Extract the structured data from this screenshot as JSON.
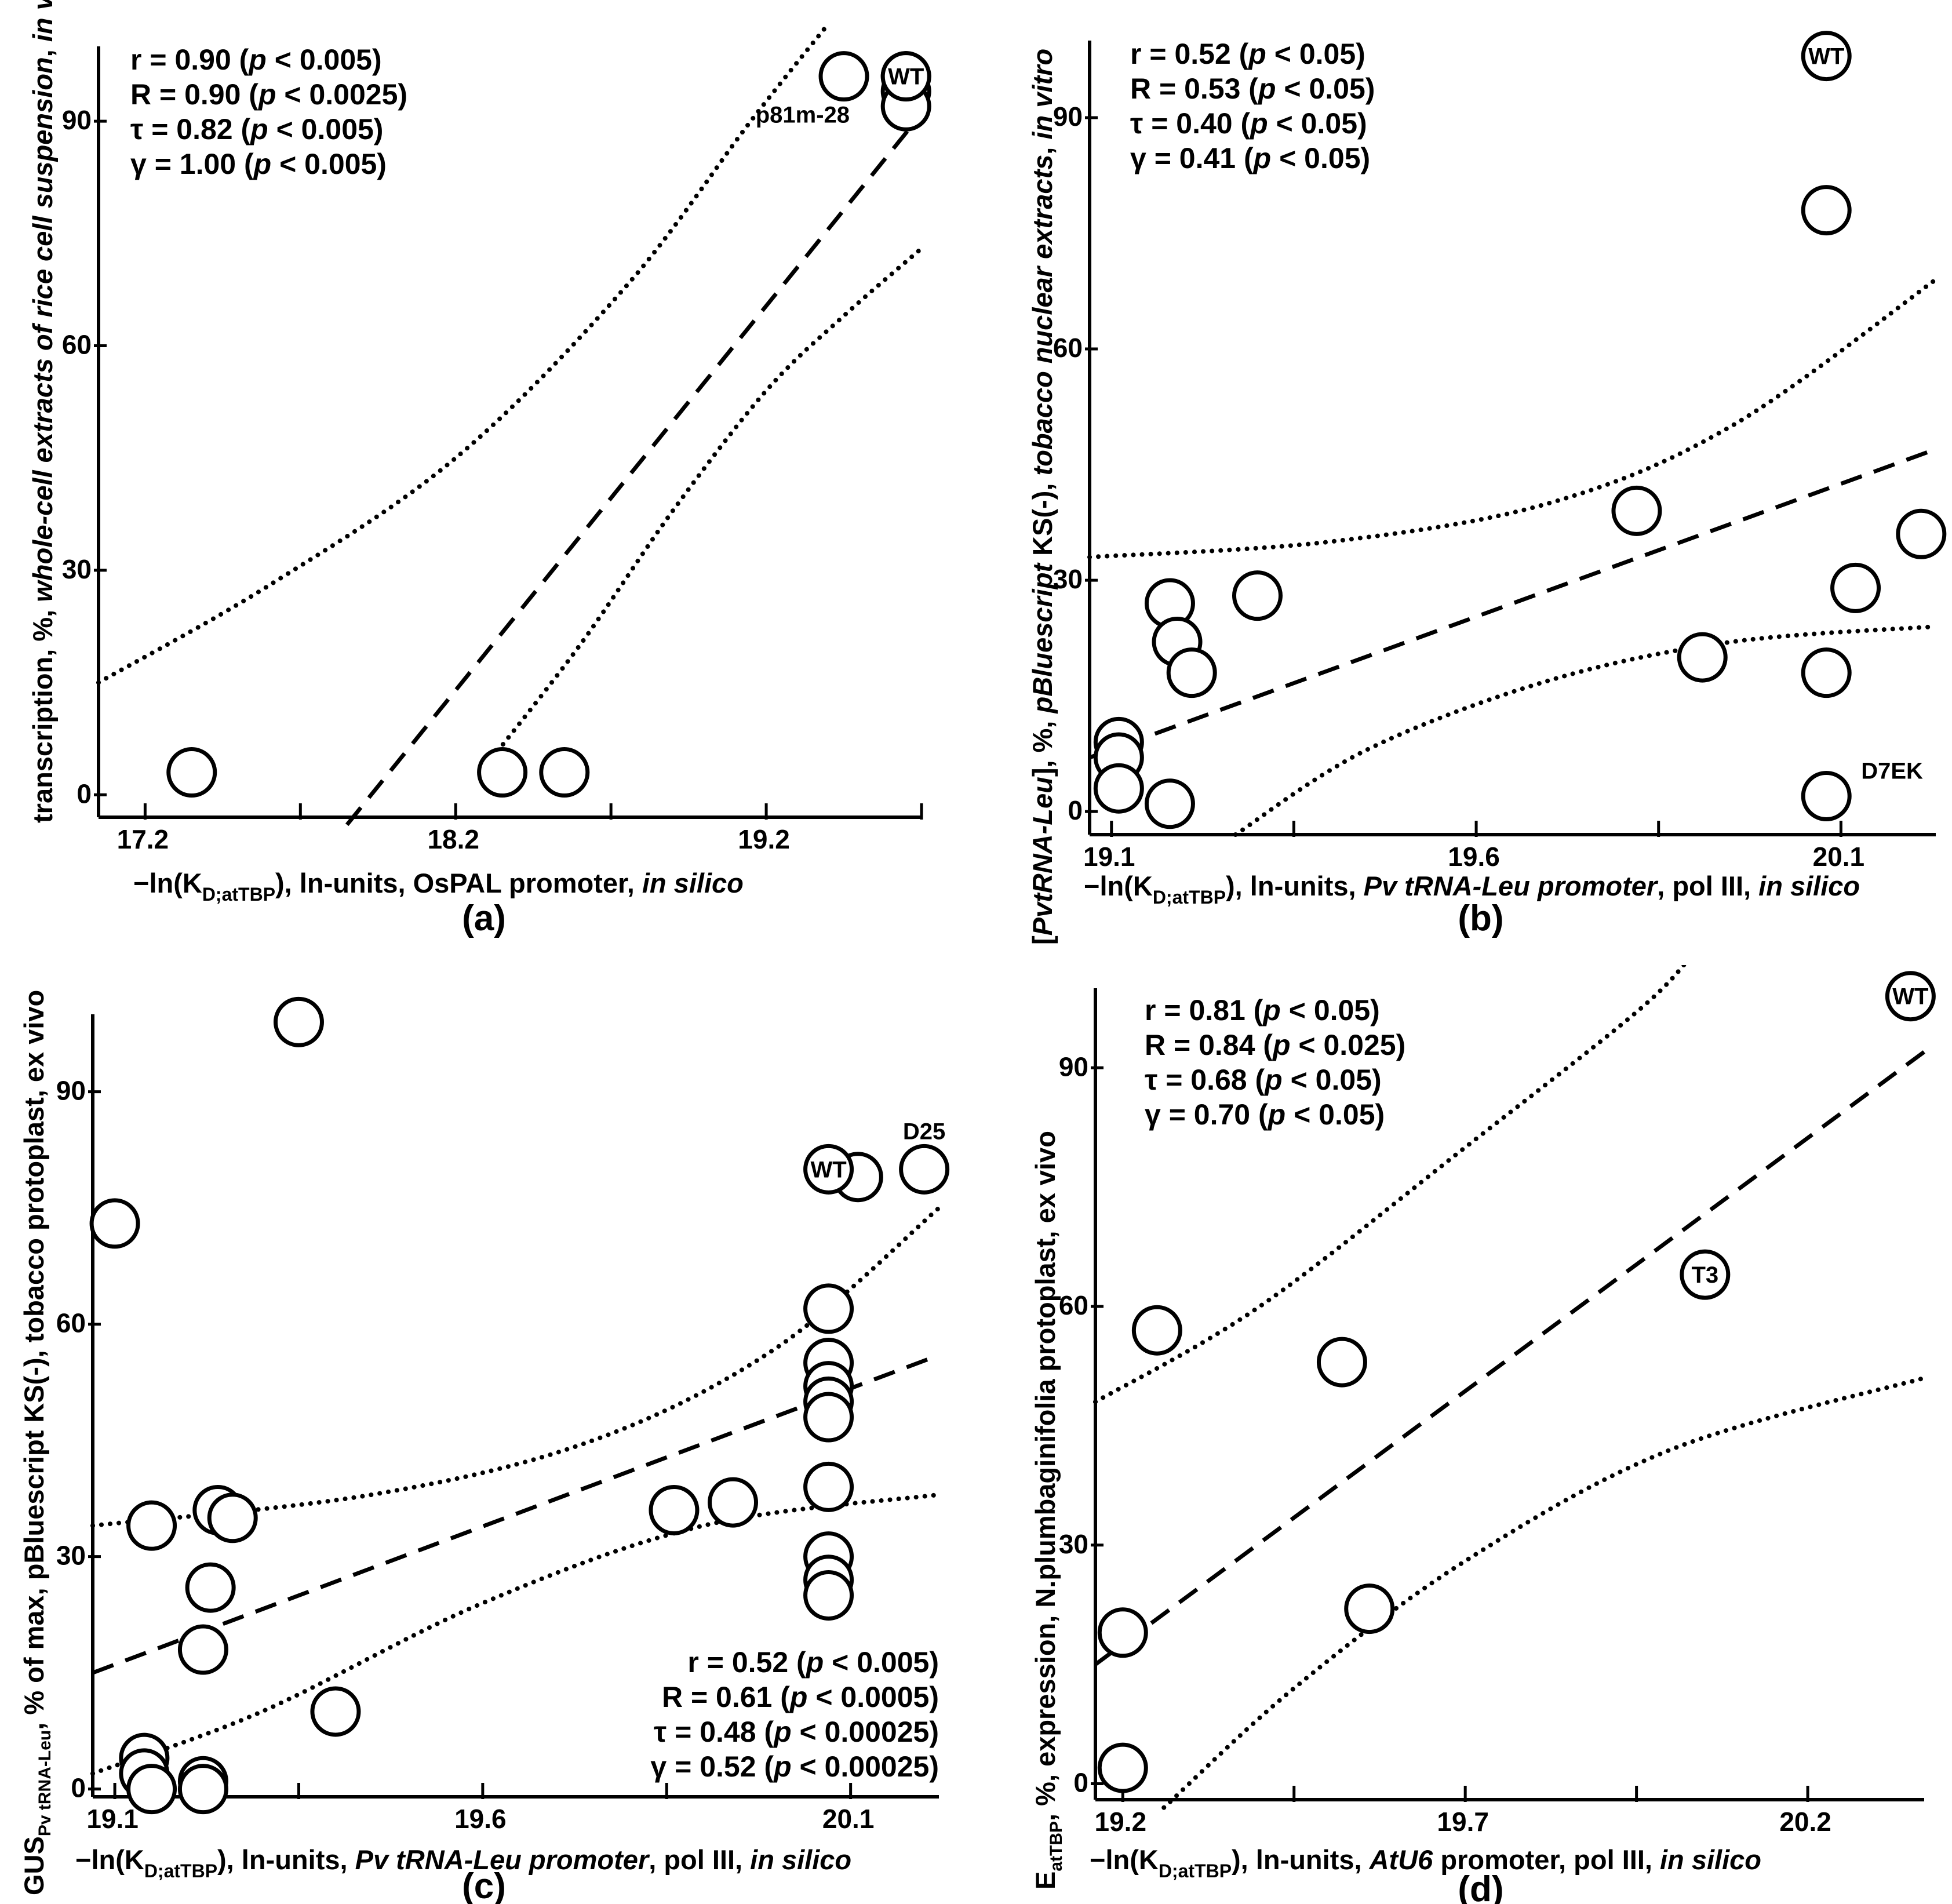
{
  "chart_data": [
    {
      "type": "scatter",
      "panel": "(a)",
      "xlabel": "−ln(K D;atTBP), ln-units, OsPAL promoter, in silico",
      "ylabel": "transcription, %, whole-cell extracts of rice cell suspension, in vitro",
      "xlim": [
        17.05,
        19.7
      ],
      "ylim": [
        -3,
        100
      ],
      "xticks": [
        17.2,
        18.2,
        19.2
      ],
      "yticks": [
        0,
        30,
        60,
        90
      ],
      "stats": [
        {
          "sym": "r",
          "value": "= 0.90",
          "p": "< 0.005"
        },
        {
          "sym": "R",
          "value": "= 0.90",
          "p": "< 0.0025"
        },
        {
          "sym": "τ",
          "value": "= 0.82",
          "p": "< 0.005"
        },
        {
          "sym": "γ",
          "value": "= 1.00",
          "p": "< 0.005"
        }
      ],
      "points": [
        {
          "x": 17.35,
          "y": 3,
          "label": ""
        },
        {
          "x": 18.35,
          "y": 3,
          "label": ""
        },
        {
          "x": 18.55,
          "y": 3,
          "label": ""
        },
        {
          "x": 19.45,
          "y": 96,
          "label": "p81m-28"
        },
        {
          "x": 19.65,
          "y": 96,
          "label": ""
        },
        {
          "x": 19.65,
          "y": 94,
          "label": ""
        },
        {
          "x": 19.65,
          "y": 92,
          "label": ""
        },
        {
          "x": 19.65,
          "y": 96,
          "label": "WT"
        }
      ],
      "regression": [
        [
          17.85,
          -4
        ],
        [
          19.7,
          91
        ]
      ],
      "upper_ci": [
        [
          17.05,
          15
        ],
        [
          17.6,
          28
        ],
        [
          18.2,
          45
        ],
        [
          18.75,
          68
        ],
        [
          19.15,
          90
        ],
        [
          19.4,
          103
        ]
      ],
      "lower_ci": [
        [
          18.3,
          4
        ],
        [
          18.6,
          20
        ],
        [
          18.9,
          38
        ],
        [
          19.2,
          54
        ],
        [
          19.45,
          64
        ],
        [
          19.7,
          73
        ]
      ]
    },
    {
      "type": "scatter",
      "panel": "(b)",
      "xlabel": "−ln(K D;atTBP), ln-units, Pv tRNA-Leu promoter, pol III, in silico",
      "ylabel": "[PvtRNA-Leu], %, pBluescript KS(-), tobacco nuclear extracts, in vitro",
      "xlim": [
        19.07,
        20.23
      ],
      "ylim": [
        -3,
        100
      ],
      "xticks": [
        19.1,
        19.6,
        20.1
      ],
      "yticks": [
        0,
        30,
        60,
        90
      ],
      "stats": [
        {
          "sym": "r",
          "value": "= 0.52",
          "p": "< 0.05"
        },
        {
          "sym": "R",
          "value": "= 0.53",
          "p": "< 0.05"
        },
        {
          "sym": "τ",
          "value": "= 0.40",
          "p": "< 0.05"
        },
        {
          "sym": "γ",
          "value": "= 0.41",
          "p": "< 0.05"
        }
      ],
      "points": [
        {
          "x": 19.11,
          "y": 9,
          "label": ""
        },
        {
          "x": 19.11,
          "y": 7,
          "label": ""
        },
        {
          "x": 19.11,
          "y": 3,
          "label": ""
        },
        {
          "x": 19.18,
          "y": 27,
          "label": ""
        },
        {
          "x": 19.19,
          "y": 22,
          "label": ""
        },
        {
          "x": 19.21,
          "y": 18,
          "label": ""
        },
        {
          "x": 19.18,
          "y": 1,
          "label": ""
        },
        {
          "x": 19.3,
          "y": 28,
          "label": ""
        },
        {
          "x": 19.82,
          "y": 39,
          "label": ""
        },
        {
          "x": 19.91,
          "y": 20,
          "label": ""
        },
        {
          "x": 20.08,
          "y": 78,
          "label": ""
        },
        {
          "x": 20.08,
          "y": 18,
          "label": ""
        },
        {
          "x": 20.12,
          "y": 29,
          "label": ""
        },
        {
          "x": 20.21,
          "y": 36,
          "label": ""
        },
        {
          "x": 20.08,
          "y": 2,
          "label": "D7EK"
        },
        {
          "x": 20.08,
          "y": 98,
          "label": "WT"
        }
      ],
      "regression": [
        [
          19.07,
          7
        ],
        [
          20.23,
          47
        ]
      ],
      "upper_ci": [
        [
          19.07,
          33
        ],
        [
          19.4,
          35
        ],
        [
          19.7,
          40
        ],
        [
          19.95,
          50
        ],
        [
          20.23,
          69
        ]
      ],
      "lower_ci": [
        [
          19.27,
          -3
        ],
        [
          19.45,
          8
        ],
        [
          19.7,
          17
        ],
        [
          19.95,
          22
        ],
        [
          20.23,
          24
        ]
      ]
    },
    {
      "type": "scatter",
      "panel": "(c)",
      "xlabel": "−ln(K D;atTBP), ln-units, Pv tRNA-Leu promoter, pol III, in silico",
      "ylabel": "GUS Pv tRNA-Leu, % of max, pBluescript KS(-), tobacco protoplast, ex vivo",
      "xlim": [
        19.07,
        20.22
      ],
      "ylim": [
        -1,
        100
      ],
      "xticks": [
        19.1,
        19.6,
        20.1
      ],
      "yticks": [
        0,
        30,
        60,
        90
      ],
      "stats": [
        {
          "sym": "r",
          "value": "= 0.52",
          "p": "< 0.005"
        },
        {
          "sym": "R",
          "value": "= 0.61",
          "p": "< 0.0005"
        },
        {
          "sym": "τ",
          "value": "= 0.48",
          "p": "< 0.00025"
        },
        {
          "sym": "γ",
          "value": "= 0.52",
          "p": "< 0.00025"
        }
      ],
      "points": [
        {
          "x": 19.1,
          "y": 73,
          "label": ""
        },
        {
          "x": 19.35,
          "y": 99,
          "label": ""
        },
        {
          "x": 19.15,
          "y": 34,
          "label": ""
        },
        {
          "x": 19.24,
          "y": 36,
          "label": ""
        },
        {
          "x": 19.26,
          "y": 35,
          "label": ""
        },
        {
          "x": 19.23,
          "y": 26,
          "label": ""
        },
        {
          "x": 19.22,
          "y": 18,
          "label": ""
        },
        {
          "x": 19.4,
          "y": 10,
          "label": ""
        },
        {
          "x": 19.14,
          "y": 4,
          "label": ""
        },
        {
          "x": 19.14,
          "y": 2,
          "label": ""
        },
        {
          "x": 19.15,
          "y": 0,
          "label": ""
        },
        {
          "x": 19.22,
          "y": 1,
          "label": ""
        },
        {
          "x": 19.22,
          "y": 0,
          "label": ""
        },
        {
          "x": 19.86,
          "y": 36,
          "label": ""
        },
        {
          "x": 19.94,
          "y": 37,
          "label": ""
        },
        {
          "x": 20.07,
          "y": 62,
          "label": ""
        },
        {
          "x": 20.07,
          "y": 55,
          "label": ""
        },
        {
          "x": 20.07,
          "y": 52,
          "label": ""
        },
        {
          "x": 20.07,
          "y": 50,
          "label": ""
        },
        {
          "x": 20.07,
          "y": 48,
          "label": ""
        },
        {
          "x": 20.07,
          "y": 39,
          "label": ""
        },
        {
          "x": 20.07,
          "y": 30,
          "label": ""
        },
        {
          "x": 20.07,
          "y": 27,
          "label": ""
        },
        {
          "x": 20.07,
          "y": 25,
          "label": ""
        },
        {
          "x": 20.11,
          "y": 79,
          "label": ""
        },
        {
          "x": 20.07,
          "y": 80,
          "label": "WT"
        },
        {
          "x": 20.2,
          "y": 80,
          "label": "D25"
        }
      ],
      "regression": [
        [
          19.07,
          15
        ],
        [
          20.22,
          56
        ]
      ],
      "upper_ci": [
        [
          19.07,
          34
        ],
        [
          19.45,
          38
        ],
        [
          19.75,
          45
        ],
        [
          20.0,
          57
        ],
        [
          20.22,
          75
        ]
      ],
      "lower_ci": [
        [
          19.07,
          2
        ],
        [
          19.3,
          10
        ],
        [
          19.6,
          24
        ],
        [
          19.9,
          34
        ],
        [
          20.22,
          38
        ]
      ]
    },
    {
      "type": "scatter",
      "panel": "(d)",
      "xlabel": "−ln(K D;atTBP), ln-units, AtU6 promoter, pol III, in silico",
      "ylabel": "E atTBP, %, expression, N.plumbaginifolia protoplast, ex vivo",
      "xlim": [
        19.16,
        20.37
      ],
      "ylim": [
        -2,
        100
      ],
      "xticks": [
        19.2,
        19.7,
        20.2
      ],
      "yticks": [
        0,
        30,
        60,
        90
      ],
      "stats": [
        {
          "sym": "r",
          "value": "= 0.81",
          "p": "< 0.05"
        },
        {
          "sym": "R",
          "value": "= 0.84",
          "p": "< 0.025"
        },
        {
          "sym": "τ",
          "value": "= 0.68",
          "p": "< 0.05"
        },
        {
          "sym": "γ",
          "value": "= 0.70",
          "p": "< 0.05"
        }
      ],
      "points": [
        {
          "x": 19.2,
          "y": 2,
          "label": ""
        },
        {
          "x": 19.2,
          "y": 19,
          "label": ""
        },
        {
          "x": 19.25,
          "y": 57,
          "label": ""
        },
        {
          "x": 19.52,
          "y": 53,
          "label": ""
        },
        {
          "x": 19.56,
          "y": 22,
          "label": ""
        },
        {
          "x": 20.05,
          "y": 64,
          "label": "T3"
        },
        {
          "x": 20.35,
          "y": 99,
          "label": "WT"
        }
      ],
      "regression": [
        [
          19.16,
          15
        ],
        [
          20.37,
          92
        ]
      ],
      "upper_ci": [
        [
          19.16,
          48
        ],
        [
          19.4,
          60
        ],
        [
          19.7,
          80
        ],
        [
          19.95,
          97
        ],
        [
          20.03,
          104
        ]
      ],
      "lower_ci": [
        [
          19.26,
          -3
        ],
        [
          19.45,
          12
        ],
        [
          19.7,
          28
        ],
        [
          20.0,
          42
        ],
        [
          20.37,
          51
        ]
      ]
    }
  ]
}
